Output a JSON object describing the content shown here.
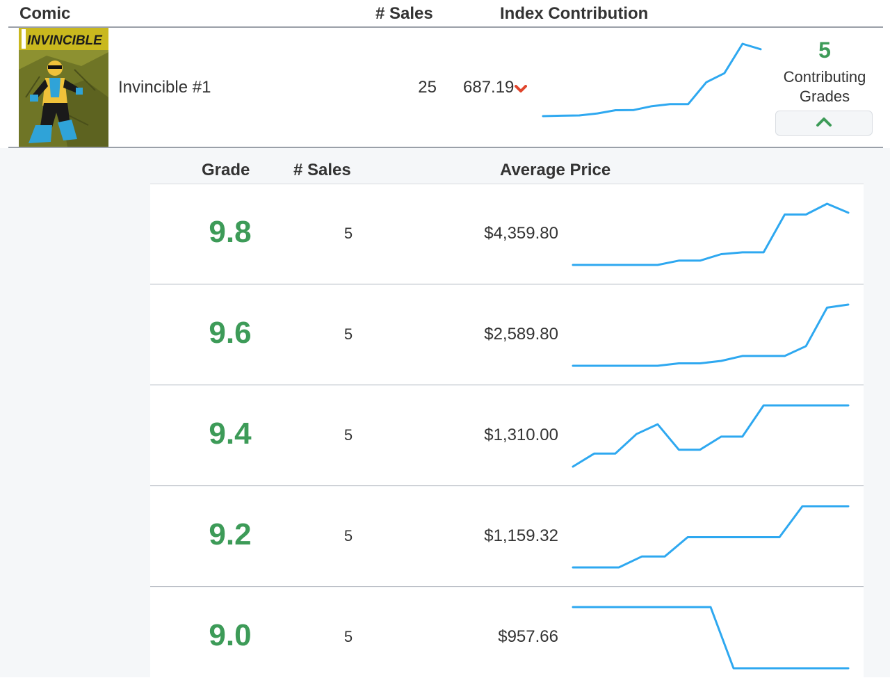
{
  "header": {
    "comic": "Comic",
    "sales": "# Sales",
    "index_contribution": "Index Contribution"
  },
  "comic": {
    "name": "Invincible #1",
    "cover_title": "INVINCIBLE",
    "sales": "25",
    "index_value": "687.19",
    "trend_direction": "down",
    "trend_color": "#e0452c",
    "sparkline": [
      2,
      2.2,
      2.3,
      3.2,
      4.6,
      4.7,
      6.4,
      7.3,
      7.3,
      17,
      21,
      34,
      31.6
    ],
    "contributing_count": "5",
    "contributing_label_line1": "Contributing",
    "contributing_label_line2": "Grades",
    "toggle_icon": "chevron-up-icon"
  },
  "grades_table": {
    "headers": {
      "grade": "Grade",
      "sales": "# Sales",
      "average_price": "Average Price"
    },
    "rows": [
      {
        "grade": "9.8",
        "sales": "5",
        "avg_price": "$4,359.80",
        "sparkline": [
          0,
          0,
          0,
          0,
          0,
          1.2,
          1.2,
          3,
          3.5,
          3.5,
          14,
          14,
          17,
          14.5
        ]
      },
      {
        "grade": "9.6",
        "sales": "5",
        "avg_price": "$2,589.80",
        "sparkline": [
          0,
          0,
          0,
          0,
          0,
          0.4,
          0.4,
          0.8,
          1.6,
          1.6,
          1.6,
          3.2,
          9.5,
          10
        ]
      },
      {
        "grade": "9.4",
        "sales": "5",
        "avg_price": "$1,310.00",
        "sparkline": [
          0,
          2,
          2,
          5,
          6.5,
          2.6,
          2.6,
          4.6,
          4.6,
          9.4,
          9.4,
          9.4,
          9.4,
          9.4
        ]
      },
      {
        "grade": "9.2",
        "sales": "5",
        "avg_price": "$1,159.32",
        "sparkline": [
          0,
          0,
          0,
          1.7,
          1.7,
          4.7,
          4.7,
          4.7,
          4.7,
          4.7,
          9.5,
          9.5,
          9.5
        ]
      },
      {
        "grade": "9.0",
        "sales": "5",
        "avg_price": "$957.66",
        "sparkline": [
          8,
          8,
          8,
          8,
          8,
          8,
          8,
          0,
          0,
          0,
          0,
          0,
          0
        ]
      }
    ]
  },
  "colors": {
    "accent_green": "#3d9b58",
    "sparkline_blue": "#2ea8f0",
    "trend_down_red": "#e0452c"
  }
}
